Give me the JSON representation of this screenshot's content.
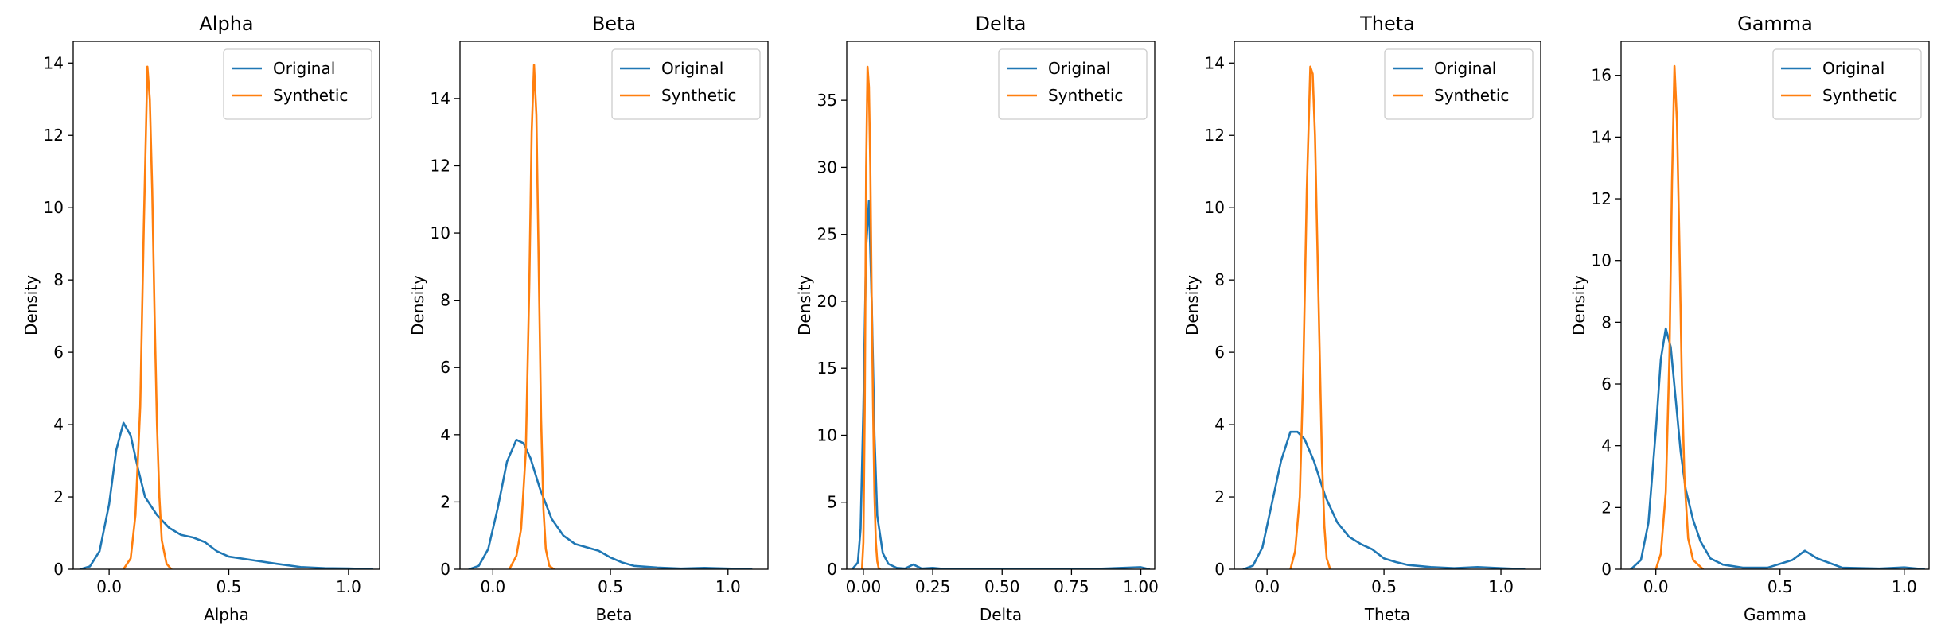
{
  "chart_data": [
    {
      "type": "line",
      "title": "Alpha",
      "xlabel": "Alpha",
      "ylabel": "Density",
      "xlim": [
        -0.15,
        1.13
      ],
      "ylim": [
        0,
        14.6
      ],
      "xticks": [
        0.0,
        0.5,
        1.0
      ],
      "xtick_labels": [
        "0.0",
        "0.5",
        "1.0"
      ],
      "yticks": [
        0,
        2,
        4,
        6,
        8,
        10,
        12,
        14
      ],
      "ytick_labels": [
        "0",
        "2",
        "4",
        "6",
        "8",
        "10",
        "12",
        "14"
      ],
      "legend_position": "top-right",
      "series": [
        {
          "name": "Original",
          "color": "#1f77b4",
          "x": [
            -0.12,
            -0.08,
            -0.04,
            0.0,
            0.03,
            0.06,
            0.09,
            0.12,
            0.15,
            0.2,
            0.25,
            0.3,
            0.35,
            0.4,
            0.45,
            0.5,
            0.6,
            0.7,
            0.8,
            0.9,
            1.0,
            1.1
          ],
          "y": [
            0.0,
            0.08,
            0.5,
            1.8,
            3.3,
            4.05,
            3.7,
            2.8,
            2.0,
            1.5,
            1.15,
            0.95,
            0.88,
            0.75,
            0.5,
            0.35,
            0.25,
            0.15,
            0.06,
            0.03,
            0.02,
            0.0
          ]
        },
        {
          "name": "Synthetic",
          "color": "#ff7f0e",
          "x": [
            0.06,
            0.09,
            0.11,
            0.13,
            0.145,
            0.16,
            0.17,
            0.18,
            0.19,
            0.2,
            0.21,
            0.22,
            0.24,
            0.26
          ],
          "y": [
            0.0,
            0.3,
            1.5,
            4.5,
            9.5,
            13.9,
            13.0,
            10.5,
            7.0,
            4.0,
            2.0,
            0.8,
            0.15,
            0.0
          ]
        }
      ]
    },
    {
      "type": "line",
      "title": "Beta",
      "xlabel": "Beta",
      "ylabel": "Density",
      "xlim": [
        -0.14,
        1.17
      ],
      "ylim": [
        0,
        15.7
      ],
      "xticks": [
        0.0,
        0.5,
        1.0
      ],
      "xtick_labels": [
        "0.0",
        "0.5",
        "1.0"
      ],
      "yticks": [
        0,
        2,
        4,
        6,
        8,
        10,
        12,
        14
      ],
      "ytick_labels": [
        "0",
        "2",
        "4",
        "6",
        "8",
        "10",
        "12",
        "14"
      ],
      "legend_position": "top-right",
      "series": [
        {
          "name": "Original",
          "color": "#1f77b4",
          "x": [
            -0.1,
            -0.06,
            -0.02,
            0.02,
            0.06,
            0.1,
            0.13,
            0.16,
            0.2,
            0.25,
            0.3,
            0.35,
            0.4,
            0.45,
            0.5,
            0.55,
            0.6,
            0.7,
            0.8,
            0.9,
            1.0,
            1.1
          ],
          "y": [
            0.0,
            0.1,
            0.6,
            1.8,
            3.2,
            3.85,
            3.75,
            3.3,
            2.4,
            1.5,
            1.0,
            0.75,
            0.65,
            0.55,
            0.35,
            0.2,
            0.1,
            0.05,
            0.02,
            0.04,
            0.02,
            0.0
          ]
        },
        {
          "name": "Synthetic",
          "color": "#ff7f0e",
          "x": [
            0.07,
            0.1,
            0.12,
            0.14,
            0.155,
            0.165,
            0.175,
            0.185,
            0.195,
            0.205,
            0.215,
            0.225,
            0.24,
            0.26
          ],
          "y": [
            0.0,
            0.4,
            1.2,
            3.5,
            8.5,
            13.0,
            15.0,
            13.5,
            9.0,
            4.5,
            1.8,
            0.6,
            0.1,
            0.0
          ]
        }
      ]
    },
    {
      "type": "line",
      "title": "Delta",
      "xlabel": "Delta",
      "ylabel": "Density",
      "xlim": [
        -0.06,
        1.05
      ],
      "ylim": [
        0,
        39.4
      ],
      "xticks": [
        0.0,
        0.25,
        0.5,
        0.75,
        1.0
      ],
      "xtick_labels": [
        "0.00",
        "0.25",
        "0.50",
        "0.75",
        "1.00"
      ],
      "yticks": [
        0,
        5,
        10,
        15,
        20,
        25,
        30,
        35
      ],
      "ytick_labels": [
        "0",
        "5",
        "10",
        "15",
        "20",
        "25",
        "30",
        "35"
      ],
      "legend_position": "top-right",
      "series": [
        {
          "name": "Original",
          "color": "#1f77b4",
          "x": [
            -0.04,
            -0.02,
            -0.01,
            0.0,
            0.01,
            0.02,
            0.03,
            0.04,
            0.05,
            0.07,
            0.09,
            0.12,
            0.15,
            0.18,
            0.21,
            0.25,
            0.3,
            0.5,
            0.8,
            1.0,
            1.03
          ],
          "y": [
            0.0,
            0.5,
            3.0,
            12.0,
            24.0,
            27.5,
            20.0,
            10.0,
            4.0,
            1.2,
            0.4,
            0.1,
            0.05,
            0.35,
            0.05,
            0.1,
            0.0,
            0.0,
            0.0,
            0.15,
            0.0
          ]
        },
        {
          "name": "Synthetic",
          "color": "#ff7f0e",
          "x": [
            -0.005,
            0.0,
            0.005,
            0.01,
            0.015,
            0.02,
            0.025,
            0.03,
            0.035,
            0.04,
            0.045,
            0.05,
            0.055,
            0.06
          ],
          "y": [
            0.0,
            2.0,
            12.0,
            30.0,
            37.5,
            36.0,
            30.0,
            20.0,
            12.0,
            5.5,
            2.0,
            0.6,
            0.1,
            0.0
          ]
        }
      ]
    },
    {
      "type": "line",
      "title": "Theta",
      "xlabel": "Theta",
      "ylabel": "Density",
      "xlim": [
        -0.14,
        1.17
      ],
      "ylim": [
        0,
        14.6
      ],
      "xticks": [
        0.0,
        0.5,
        1.0
      ],
      "xtick_labels": [
        "0.0",
        "0.5",
        "1.0"
      ],
      "yticks": [
        0,
        2,
        4,
        6,
        8,
        10,
        12,
        14
      ],
      "ytick_labels": [
        "0",
        "2",
        "4",
        "6",
        "8",
        "10",
        "12",
        "14"
      ],
      "legend_position": "top-right",
      "series": [
        {
          "name": "Original",
          "color": "#1f77b4",
          "x": [
            -0.1,
            -0.06,
            -0.02,
            0.02,
            0.06,
            0.1,
            0.13,
            0.16,
            0.2,
            0.25,
            0.3,
            0.35,
            0.4,
            0.45,
            0.5,
            0.55,
            0.6,
            0.7,
            0.8,
            0.9,
            1.0,
            1.1
          ],
          "y": [
            0.0,
            0.1,
            0.6,
            1.8,
            3.0,
            3.8,
            3.8,
            3.6,
            3.0,
            2.0,
            1.3,
            0.9,
            0.7,
            0.55,
            0.3,
            0.2,
            0.12,
            0.06,
            0.03,
            0.06,
            0.03,
            0.0
          ]
        },
        {
          "name": "Synthetic",
          "color": "#ff7f0e",
          "x": [
            0.1,
            0.12,
            0.14,
            0.155,
            0.17,
            0.185,
            0.195,
            0.205,
            0.215,
            0.225,
            0.235,
            0.245,
            0.255,
            0.27
          ],
          "y": [
            0.0,
            0.5,
            2.0,
            5.5,
            10.5,
            13.9,
            13.7,
            12.0,
            9.0,
            6.0,
            3.0,
            1.2,
            0.3,
            0.0
          ]
        }
      ]
    },
    {
      "type": "line",
      "title": "Gamma",
      "xlabel": "Gamma",
      "ylabel": "Density",
      "xlim": [
        -0.14,
        1.1
      ],
      "ylim": [
        0,
        17.1
      ],
      "xticks": [
        0.0,
        0.5,
        1.0
      ],
      "xtick_labels": [
        "0.0",
        "0.5",
        "1.0"
      ],
      "yticks": [
        0,
        2,
        4,
        6,
        8,
        10,
        12,
        14,
        16
      ],
      "ytick_labels": [
        "0",
        "2",
        "4",
        "6",
        "8",
        "10",
        "12",
        "14",
        "16"
      ],
      "legend_position": "top-right",
      "series": [
        {
          "name": "Original",
          "color": "#1f77b4",
          "x": [
            -0.1,
            -0.06,
            -0.03,
            0.0,
            0.02,
            0.04,
            0.06,
            0.08,
            0.1,
            0.12,
            0.15,
            0.18,
            0.22,
            0.27,
            0.35,
            0.45,
            0.55,
            0.6,
            0.65,
            0.75,
            0.9,
            1.0,
            1.08
          ],
          "y": [
            0.0,
            0.3,
            1.5,
            4.5,
            6.8,
            7.8,
            7.2,
            5.5,
            3.8,
            2.6,
            1.6,
            0.9,
            0.35,
            0.15,
            0.05,
            0.05,
            0.3,
            0.6,
            0.35,
            0.05,
            0.02,
            0.06,
            0.0
          ]
        },
        {
          "name": "Synthetic",
          "color": "#ff7f0e",
          "x": [
            0.0,
            0.02,
            0.04,
            0.055,
            0.065,
            0.075,
            0.085,
            0.095,
            0.105,
            0.115,
            0.13,
            0.15,
            0.17,
            0.19
          ],
          "y": [
            0.0,
            0.5,
            2.5,
            7.0,
            12.5,
            16.3,
            14.5,
            10.5,
            6.0,
            3.0,
            1.0,
            0.3,
            0.15,
            0.0
          ]
        }
      ]
    }
  ]
}
